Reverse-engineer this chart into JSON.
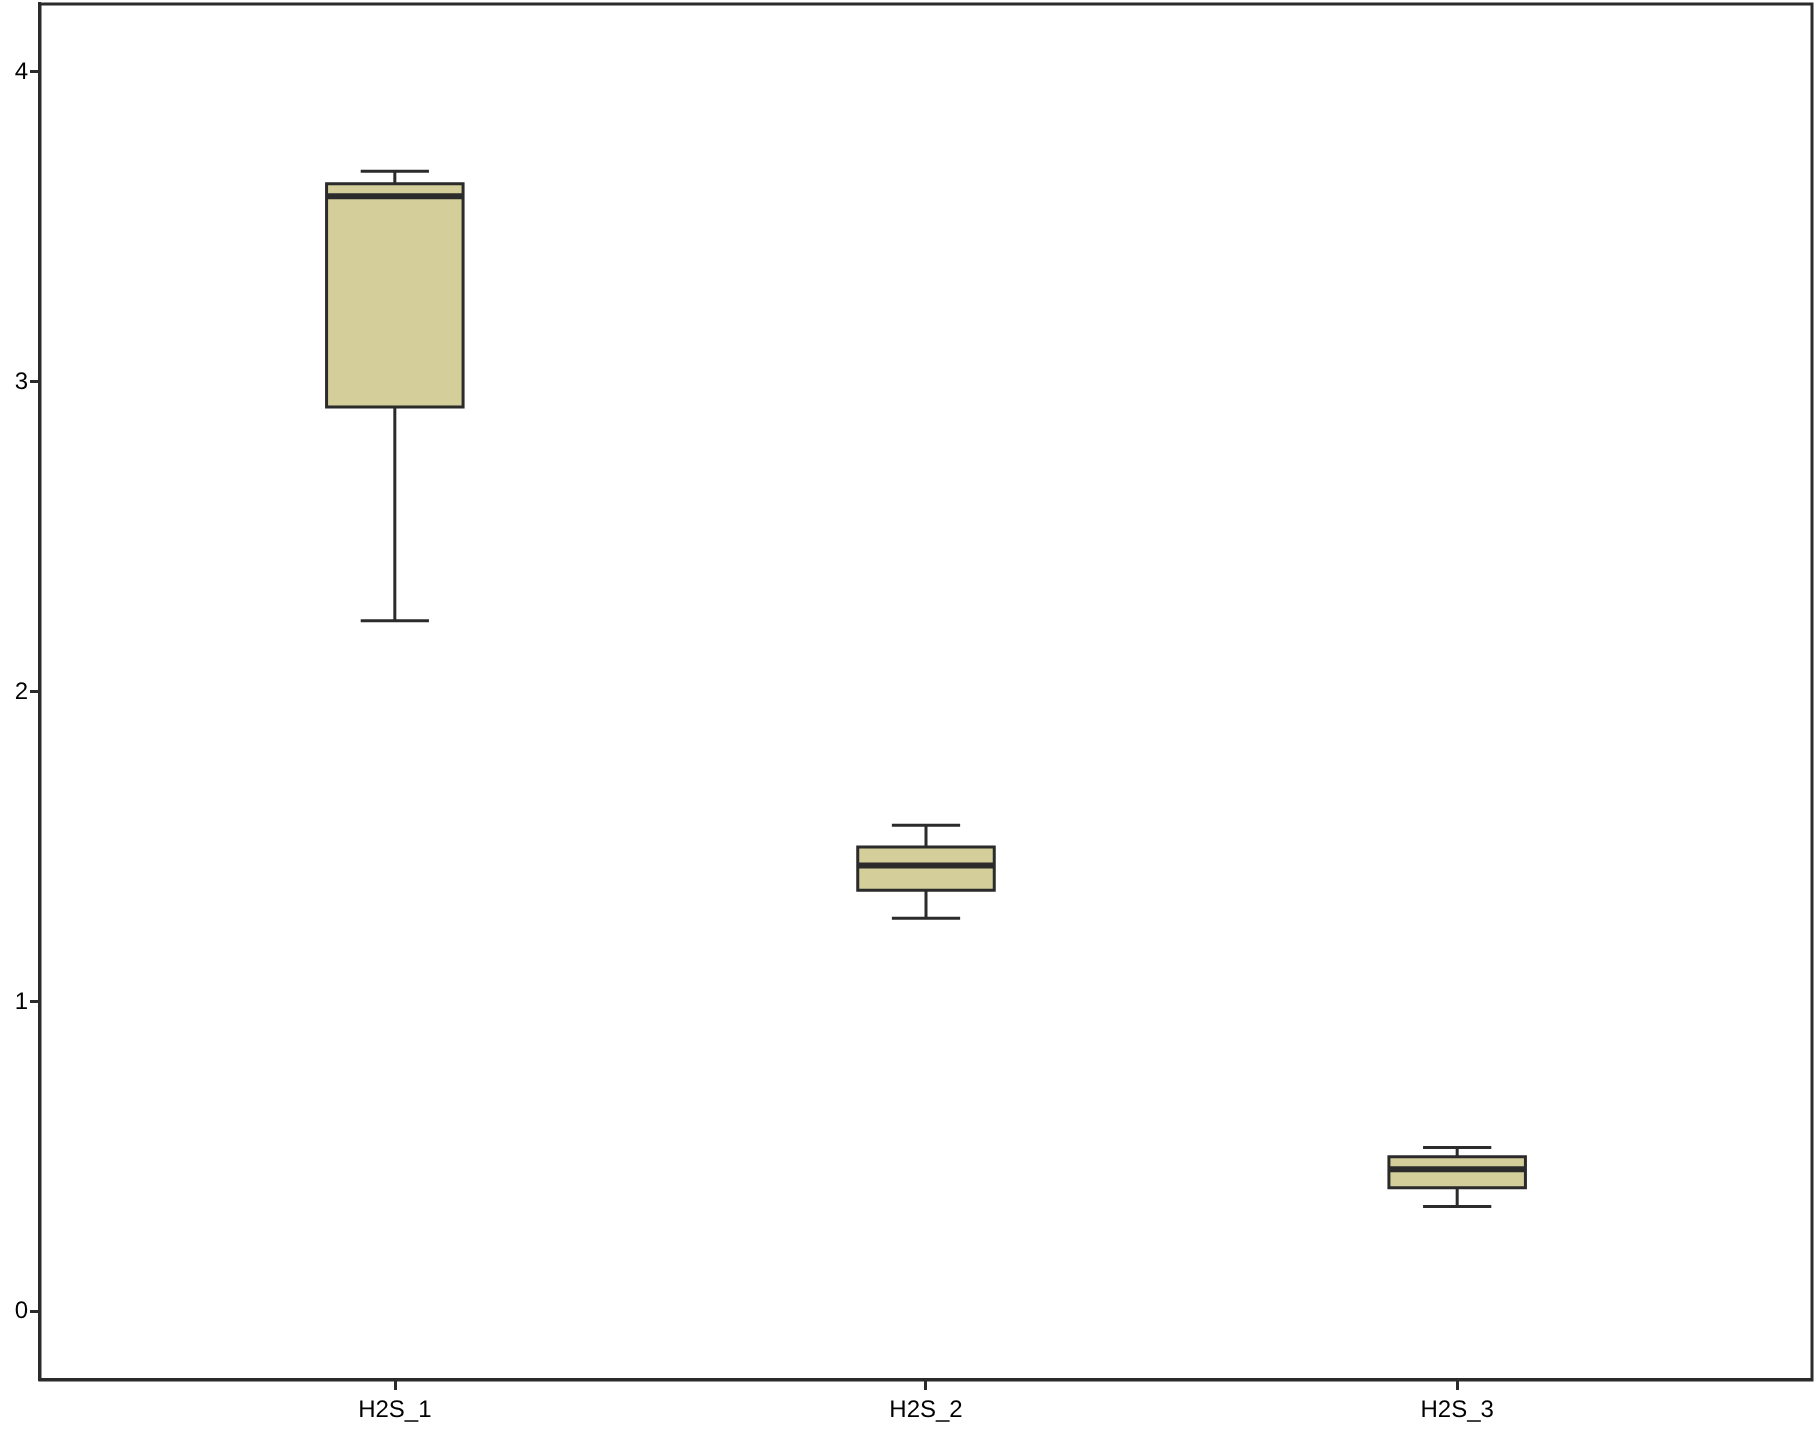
{
  "chart_data": {
    "type": "box",
    "categories": [
      "H2S_1",
      "H2S_2",
      "H2S_3"
    ],
    "color": "#d3ce9a",
    "boxes": [
      {
        "low": 2.23,
        "q1": 2.92,
        "median": 3.6,
        "q3": 3.64,
        "high": 3.68
      },
      {
        "low": 1.27,
        "q1": 1.36,
        "median": 1.44,
        "q3": 1.5,
        "high": 1.57
      },
      {
        "low": 0.34,
        "q1": 0.4,
        "median": 0.46,
        "q3": 0.5,
        "high": 0.53
      }
    ],
    "ylim": [
      -0.22,
      4.22
    ],
    "yticks": [
      0,
      1,
      2,
      3,
      4
    ]
  }
}
